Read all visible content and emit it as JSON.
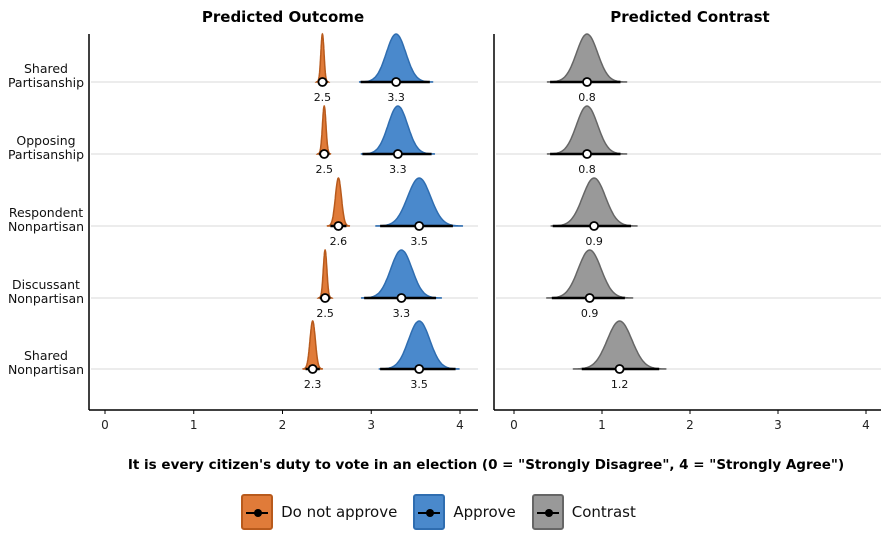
{
  "chart_data": {
    "type": "area",
    "panels": [
      {
        "title": "Predicted Outcome",
        "xlim": [
          0,
          4.2
        ],
        "ticks": [
          0,
          1,
          2,
          3,
          4
        ]
      },
      {
        "title": "Predicted Contrast",
        "xlim": [
          0,
          4.2
        ],
        "ticks": [
          0,
          1,
          2,
          3,
          4
        ]
      }
    ],
    "xlabel": "It is every citizen's duty to vote in an election (0 = \"Strongly Disagree\", 4 = \"Strongly Agree\")",
    "categories": [
      "Shared Partisanship",
      "Opposing Partisanship",
      "Respondent Nonpartisan",
      "Discussant Nonpartisan",
      "Shared Nonpartisan"
    ],
    "category_lines": [
      [
        "Shared",
        "Partisanship"
      ],
      [
        "Opposing",
        "Partisanship"
      ],
      [
        "Respondent",
        "Nonpartisan"
      ],
      [
        "Discussant",
        "Nonpartisan"
      ],
      [
        "Shared",
        "Nonpartisan"
      ]
    ],
    "series": [
      {
        "name": "Do not approve",
        "panel": 0,
        "color": "#E07B39",
        "stroke": "#B85A1C",
        "estimates": [
          2.45,
          2.47,
          2.63,
          2.48,
          2.34
        ],
        "intervals": [
          [
            2.4,
            2.51
          ],
          [
            2.41,
            2.53
          ],
          [
            2.54,
            2.72
          ],
          [
            2.42,
            2.54
          ],
          [
            2.26,
            2.42
          ]
        ],
        "sd": [
          0.018,
          0.02,
          0.034,
          0.02,
          0.03
        ],
        "labels": [
          "2.5",
          "2.5",
          "2.6",
          "2.5",
          "2.3"
        ]
      },
      {
        "name": "Approve",
        "panel": 0,
        "color": "#4A89CC",
        "stroke": "#2F6DB0",
        "estimates": [
          3.28,
          3.3,
          3.54,
          3.34,
          3.54
        ],
        "intervals": [
          [
            2.88,
            3.66
          ],
          [
            2.9,
            3.68
          ],
          [
            3.1,
            3.92
          ],
          [
            2.92,
            3.73
          ],
          [
            3.1,
            3.95
          ]
        ],
        "sd": [
          0.11,
          0.11,
          0.13,
          0.12,
          0.12
        ],
        "labels": [
          "3.3",
          "3.3",
          "3.5",
          "3.3",
          "3.5"
        ]
      },
      {
        "name": "Contrast",
        "panel": 1,
        "color": "#999999",
        "stroke": "#666666",
        "estimates": [
          0.83,
          0.83,
          0.91,
          0.86,
          1.2
        ],
        "intervals": [
          [
            0.41,
            1.21
          ],
          [
            0.41,
            1.21
          ],
          [
            0.44,
            1.33
          ],
          [
            0.43,
            1.26
          ],
          [
            0.77,
            1.65
          ]
        ],
        "sd": [
          0.12,
          0.12,
          0.13,
          0.13,
          0.14
        ],
        "labels": [
          "0.8",
          "0.8",
          "0.9",
          "0.9",
          "1.2"
        ]
      }
    ],
    "legend_position": "bottom",
    "grid": "horizontal baselines only"
  }
}
